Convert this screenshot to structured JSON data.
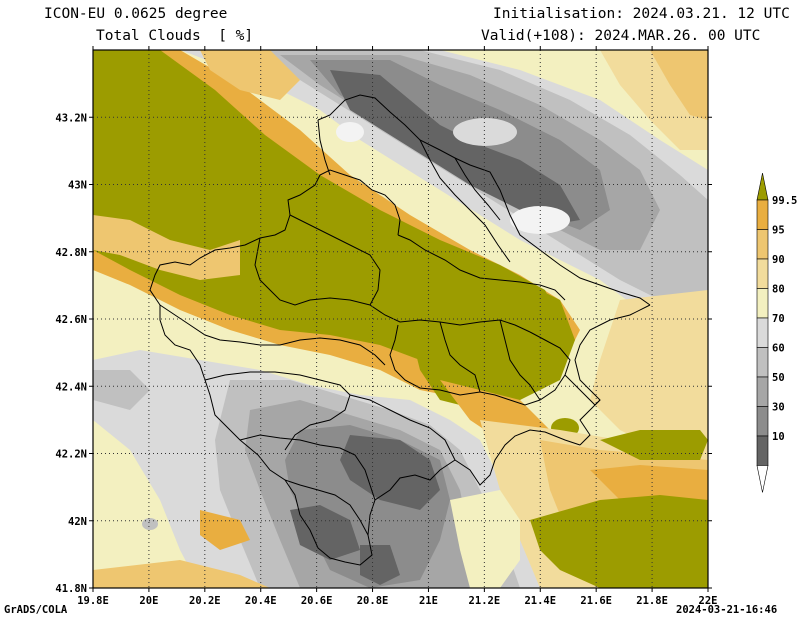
{
  "header": {
    "model": "ICON-EU 0.0625 degree",
    "field": "Total Clouds  [ %]",
    "init": "Initialisation: 2024.03.21. 12 UTC",
    "valid": "Valid(+108): 2024.MAR.26. 00 UTC"
  },
  "footer": {
    "credit": "GrADS/COLA",
    "timestamp": "2024-03-21-16:46"
  },
  "map": {
    "lon_range": [
      19.8,
      22.0
    ],
    "lat_range": [
      41.8,
      43.4
    ],
    "x_ticks": [
      "19.8E",
      "20E",
      "20.2E",
      "20.4E",
      "20.6E",
      "20.8E",
      "21E",
      "21.2E",
      "21.4E",
      "21.6E",
      "21.8E",
      "22E"
    ],
    "y_ticks": [
      "41.8N",
      "42N",
      "42.2N",
      "42.4N",
      "42.6N",
      "42.8N",
      "43N",
      "43.2N"
    ],
    "grid": true
  },
  "colorbar": {
    "labels": [
      "10",
      "30",
      "50",
      "60",
      "70",
      "80",
      "90",
      "95",
      "99.5"
    ],
    "colors": [
      "#ffffff",
      "#646464",
      "#8c8c8c",
      "#a6a6a6",
      "#c0c0c0",
      "#dadada",
      "#f3f0c0",
      "#f2dc9c",
      "#eec670",
      "#e9ae40",
      "#9c9c00"
    ]
  }
}
